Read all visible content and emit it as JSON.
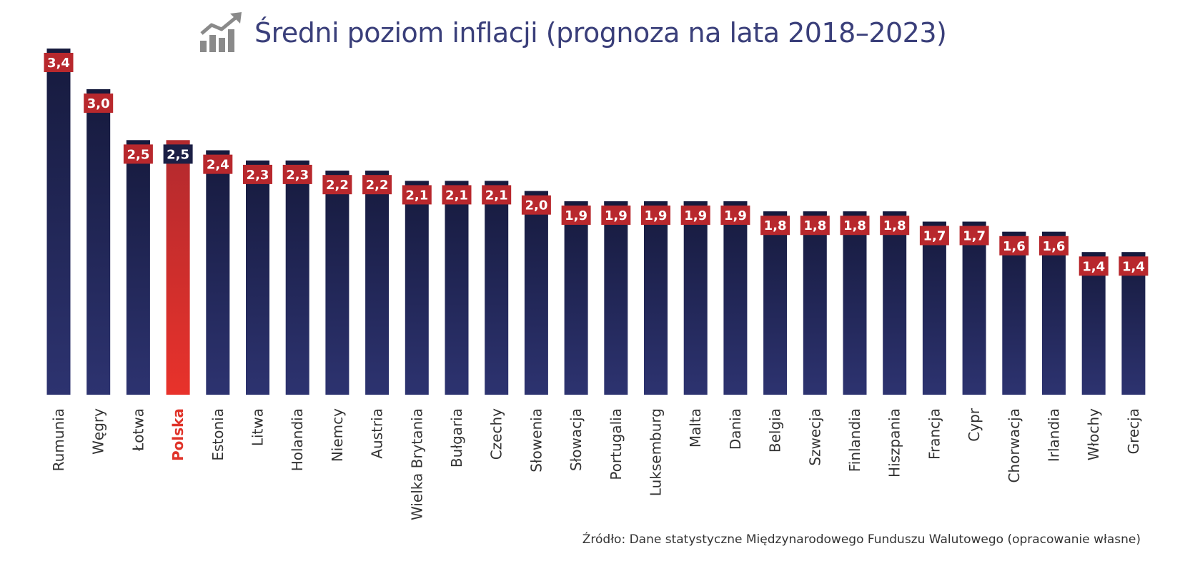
{
  "title": "Średni poziom inflacji (prognoza na lata 2018–2023)",
  "source": "Źródło: Dane statystyczne Międzynarodowego Funduszu Walutowego (opracowanie własne)",
  "colors": {
    "bar_top": "#161a3d",
    "bar_bottom": "#2d3370",
    "highlight_top": "#b22a2e",
    "highlight_bottom": "#e8322b",
    "label_bg": "#b8282d",
    "highlight_label_bg": "#1b1f45",
    "title": "#3a3f7a",
    "highlight_text": "#e03329",
    "axis_text": "#333333",
    "icon": "#8a8a8a"
  },
  "icon": "chart-growth-icon",
  "chart_data": {
    "type": "bar",
    "title": "Średni poziom inflacji (prognoza na lata 2018–2023)",
    "xlabel": "",
    "ylabel": "",
    "ylim": [
      0,
      3.4
    ],
    "grid": false,
    "legend": "none",
    "highlight": "Polska",
    "categories": [
      "Rumunia",
      "Węgry",
      "Łotwa",
      "Polska",
      "Estonia",
      "Litwa",
      "Holandia",
      "Niemcy",
      "Austria",
      "Wielka Brytania",
      "Bułgaria",
      "Czechy",
      "Słowenia",
      "Słowacja",
      "Portugalia",
      "Luksemburg",
      "Malta",
      "Dania",
      "Belgia",
      "Szwecja",
      "Finlandia",
      "Hiszpania",
      "Francja",
      "Cypr",
      "Chorwacja",
      "Irlandia",
      "Włochy",
      "Grecja"
    ],
    "values": [
      3.4,
      3.0,
      2.5,
      2.5,
      2.4,
      2.3,
      2.3,
      2.2,
      2.2,
      2.1,
      2.1,
      2.1,
      2.0,
      1.9,
      1.9,
      1.9,
      1.9,
      1.9,
      1.8,
      1.8,
      1.8,
      1.8,
      1.7,
      1.7,
      1.6,
      1.6,
      1.4,
      1.4
    ],
    "value_labels": [
      "3,4",
      "3,0",
      "2,5",
      "2,5",
      "2,4",
      "2,3",
      "2,3",
      "2,2",
      "2,2",
      "2,1",
      "2,1",
      "2,1",
      "2,0",
      "1,9",
      "1,9",
      "1,9",
      "1,9",
      "1,9",
      "1,8",
      "1,8",
      "1,8",
      "1,8",
      "1,7",
      "1,7",
      "1,6",
      "1,6",
      "1,4",
      "1,4"
    ]
  }
}
